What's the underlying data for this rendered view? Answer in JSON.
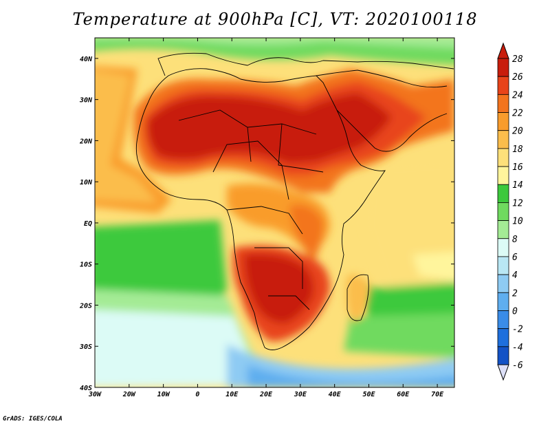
{
  "title": "Temperature at 900hPa [C], VT: 2020100118",
  "credit": "GrADS: IGES/COLA",
  "map": {
    "lon_range": [
      -30,
      75
    ],
    "lat_range": [
      -40,
      45
    ],
    "lon_ticks": [
      "30W",
      "20W",
      "10W",
      "0",
      "10E",
      "20E",
      "30E",
      "40E",
      "50E",
      "60E",
      "70E"
    ],
    "lat_ticks": [
      "40N",
      "30N",
      "20N",
      "10N",
      "EQ",
      "10S",
      "20S",
      "30S",
      "40S"
    ]
  },
  "colorbar": {
    "levels": [
      "28",
      "26",
      "24",
      "22",
      "20",
      "18",
      "16",
      "14",
      "12",
      "10",
      "8",
      "6",
      "4",
      "2",
      "0",
      "-2",
      "-4",
      "-6"
    ],
    "colors": [
      "#c81d0c",
      "#e8441a",
      "#f3741e",
      "#f99c2c",
      "#fbbd4c",
      "#fde07a",
      "#fff59c",
      "#3cc93c",
      "#6fda5f",
      "#a4eb95",
      "#dcfbf6",
      "#b9e7f4",
      "#8ecbf3",
      "#5faeef",
      "#3a8ce8",
      "#1e6fdd",
      "#1352c6",
      "#0b2a8c"
    ],
    "range": [
      -6,
      28
    ]
  }
}
